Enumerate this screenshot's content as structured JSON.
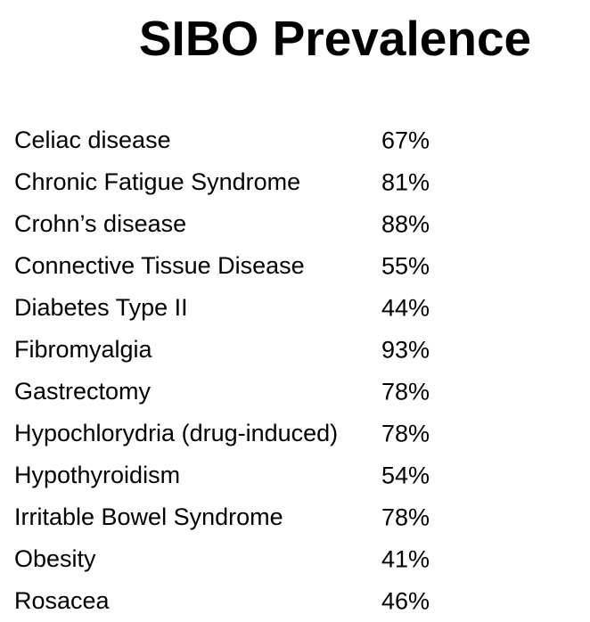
{
  "page": {
    "title": "SIBO Prevalence"
  },
  "table": {
    "rows": [
      {
        "condition": "Celiac disease",
        "prevalence": "67%"
      },
      {
        "condition": "Chronic Fatigue Syndrome",
        "prevalence": "81%"
      },
      {
        "condition": "Crohn’s disease",
        "prevalence": "88%"
      },
      {
        "condition": "Connective Tissue Disease",
        "prevalence": "55%"
      },
      {
        "condition": "Diabetes Type II",
        "prevalence": "44%"
      },
      {
        "condition": "Fibromyalgia",
        "prevalence": "93%"
      },
      {
        "condition": "Gastrectomy",
        "prevalence": "78%"
      },
      {
        "condition": "Hypochlorydria (drug-induced)",
        "prevalence": "78%"
      },
      {
        "condition": "Hypothyroidism",
        "prevalence": "54%"
      },
      {
        "condition": "Irritable Bowel Syndrome",
        "prevalence": "78%"
      },
      {
        "condition": "Obesity",
        "prevalence": "41%"
      },
      {
        "condition": "Rosacea",
        "prevalence": "46%"
      }
    ]
  },
  "chart_data": {
    "type": "table",
    "title": "SIBO Prevalence",
    "categories": [
      "Celiac disease",
      "Chronic Fatigue Syndrome",
      "Crohn’s disease",
      "Connective Tissue Disease",
      "Diabetes Type II",
      "Fibromyalgia",
      "Gastrectomy",
      "Hypochlorydria (drug-induced)",
      "Hypothyroidism",
      "Irritable Bowel Syndrome",
      "Obesity",
      "Rosacea"
    ],
    "values": [
      67,
      81,
      88,
      55,
      44,
      93,
      78,
      78,
      54,
      78,
      41,
      46
    ],
    "unit": "%",
    "text_color": "#000000",
    "background_color": "#ffffff"
  }
}
